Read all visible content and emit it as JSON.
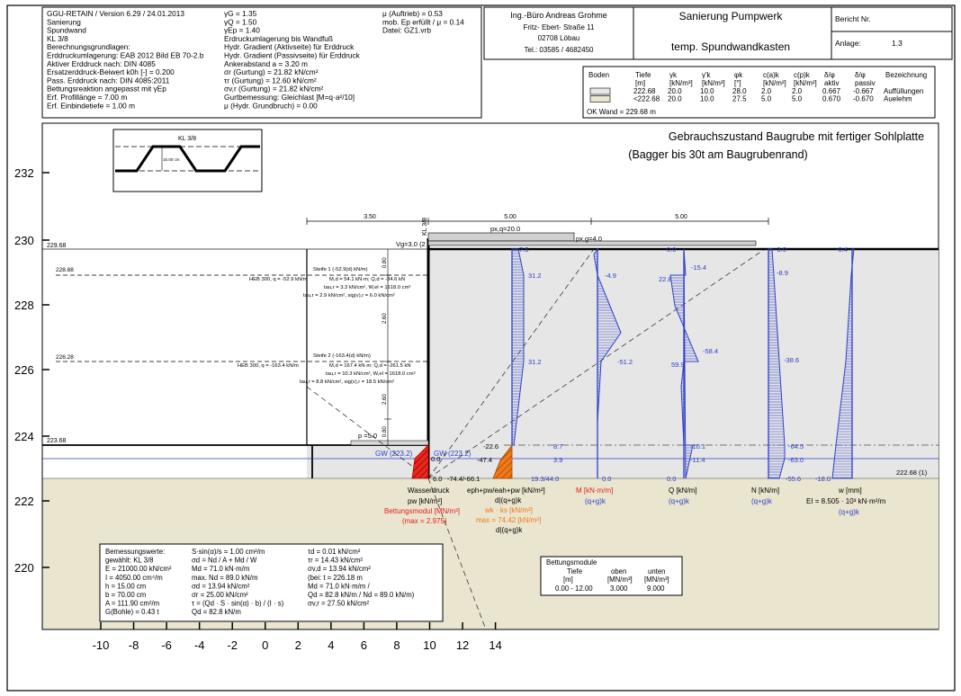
{
  "header": {
    "program_lines": [
      "GGU-RETAIN / Version 6.29 / 24.01.2013",
      "Sanierung",
      "Spundwand",
      "KL 3/8",
      "Berechnungsgrundlagen:",
      "Erddruckumlagerung: EAB 2012 Bild EB 70-2.b",
      "Aktiver Erddruck nach: DIN 4085",
      "Ersatzerddruck-Beiwert k0h [-] = 0.200",
      "Pass. Erddruck nach: DIN 4085:2011",
      "Bettungsreaktion angepasst mit γEp",
      "Erf. Profillänge = 7.00 m",
      "Erf. Einbindetiefe = 1.00 m"
    ],
    "factors_lines": [
      "γG = 1.35",
      "γQ = 1.50",
      "γEp = 1.40",
      "Erdruckumlagerung bis Wandfuß",
      "Hydr. Gradient (Aktivseite) für Erddruck",
      "Hydr. Gradient (Passivseite) für Erddruck",
      "Ankerabstand a = 3.20 m",
      "σr (Gurtung) = 21.82 kN/cm²",
      "τr (Gurtung) = 12.60 kN/cm²",
      "σv,r (Gurtung) = 21.82 kN/cm²",
      "Gurtbemessung: Gleichlast [M=q·a²/10]",
      "μ (Hydr. Grundbruch) = 0.00"
    ],
    "misc_lines": [
      "μ (Auftrieb) = 0.53",
      "mob. Ep erfüllt / μ = 0.14",
      "Datei: GZ1.vrb"
    ],
    "office": {
      "name": "Ing.-Büro Andreas Grohme",
      "street": "Fritz- Ebert- Straße 11",
      "city": "02708 Löbau",
      "phone": "Tel.: 03585 / 4682450"
    },
    "project": {
      "title": "Sanierung Pumpwerk",
      "subtitle": "temp. Spundwandkasten"
    },
    "report": {
      "bericht_label": "Bericht Nr.",
      "anlage_label": "Anlage:",
      "anlage_value": "1.3"
    }
  },
  "soil_table": {
    "headers": [
      "Boden",
      "Tiefe",
      "γk",
      "γ'k",
      "φk",
      "c(a)k",
      "c(p)k",
      "δ/φ",
      "δ/φ",
      "Bezeichnung"
    ],
    "units": [
      "",
      "[m]",
      "[kN/m³]",
      "[kN/m³]",
      "[°]",
      "[kN/m²]",
      "[kN/m²]",
      "aktiv",
      "passiv",
      ""
    ],
    "rows": [
      {
        "color": "#e6e6e6",
        "cells": [
          "222.68",
          "20.0",
          "10.0",
          "28.0",
          "2.0",
          "2.0",
          "0.667",
          "-0.667",
          "Auffüllungen"
        ]
      },
      {
        "color": "#eae5cf",
        "cells": [
          "<222.68",
          "20.0",
          "10.0",
          "27.5",
          "5.0",
          "5.0",
          "0.670",
          "-0.670",
          "Auelehm"
        ]
      }
    ],
    "ok_wand": "OK Wand = 229.68 m"
  },
  "drawing": {
    "title_line1": "Gebrauchszustand Baugrube mit fertiger Sohlplatte",
    "title_line2": "(Bagger bis 30t am Baugrubenrand)",
    "profile_label": "KL 3/8",
    "profile_height_label": "15.00 cm",
    "dims": {
      "left": "3.50",
      "right1": "5.00",
      "right2": "5.00"
    },
    "wall_tag": "KL 3/8",
    "elev_labels": {
      "top": "229.68",
      "strut1": "228.88",
      "strut2": "226.28",
      "bottom": "223.68",
      "right": "222.68 (1)"
    },
    "section_dims": [
      "0.80",
      "2.60",
      "2.60",
      "0.80"
    ],
    "loads": {
      "pxq": "px,q=20.0",
      "pxg": "px,g=4.0",
      "vg": "Vg=3.0 (2",
      "p": "p =5.0"
    },
    "strut1": {
      "title": "Steife 1 (-52.9(d) kN/m)",
      "left": "HEB 300, q = -52.9 kN/m",
      "l1": "M,d = 54.1 kN·m; Q,d = -84.6 kN",
      "l2": "tau,r = 3.3 kN/cm², W,el = 1618.0 cm³",
      "l3": "tau,r = 2.9 kN/cm², sig(v),r = 6.0 kN/cm²"
    },
    "strut2": {
      "title": "Steife 2 (-163.4(d) kN/m)",
      "left": "HEB 300, q = -163.4 kN/m",
      "l1": "M,d = 167.4 kN·m; Q,d = -261.5 kN",
      "l2": "tau,r = 10.3 kN/cm², W,el = 1618.0 cm³",
      "l3": "tau,r = 8.8 kN/cm², sig(v),r = 18.5 kN/cm²"
    },
    "gw_labels": [
      "GW (223.2)",
      "GW (223.2)"
    ],
    "values": {
      "wd": "0.0",
      "wd2": "6.0",
      "epa": "-74.4/-66.1",
      "ep1": "-47.4",
      "ep2": "-22.6",
      "eph_top": "7.5",
      "eph1": "31.2",
      "eph2": "31.2",
      "eph3": "8.7",
      "eph4": "3.9",
      "eph5": "19.3/44.0",
      "m1": "-4.9",
      "m2": "-51.2",
      "m3": "0.0",
      "q0": "0.0",
      "q1": "-15.4",
      "q2": "22.8",
      "q3": "59.9",
      "q4": "-58.4",
      "q5": "-10.1",
      "q6": "-11.4",
      "q7": "0.0",
      "n1": "-3.0",
      "n2": "-8.9",
      "n3": "-38.6",
      "n4": "-64.5",
      "n5": "-63.0",
      "n6": "-55.6",
      "w1": "-0.4",
      "w2": "-18.0"
    },
    "captions": {
      "wasser1": "Wasserdruck",
      "wasser2": "pw [kN/m²]",
      "bettung1": "Bettungsmodul [MN/m³]",
      "bettung2": "(max = 2.975)",
      "eph1": "eph+pw/eah+pw [kN/m²]",
      "eph2": "d|(q+g)k",
      "wk1": "wk · ks [kN/m²]",
      "wk2": "max = 74.42 [kN/m²]",
      "wk3": "d|(q+g)k",
      "m1": "M [kN·m/m]",
      "m2": "(q+g)k",
      "q1": "Q [kN/m]",
      "q2": "(q+g)k",
      "n1": "N [kN/m]",
      "n2": "(q+g)k",
      "w1": "w [mm]",
      "w2": "EI = 8.505 · 10³ kN·m²/m",
      "w3": "(q+g)k"
    },
    "x_ticks": [
      "-10",
      "-8",
      "-6",
      "-4",
      "-2",
      "0",
      "2",
      "4",
      "6",
      "8",
      "10",
      "12",
      "14"
    ],
    "y_ticks": [
      "232",
      "230",
      "228",
      "226",
      "224",
      "222",
      "220"
    ]
  },
  "design_box": {
    "col1": [
      "Bemessungswerte:",
      "gewählt: KL 3/8",
      "E = 21000.00 kN/cm²",
      "I = 4050.00 cm⁴/m",
      "h = 15.00 cm",
      "b = 70.00 cm",
      "A = 111.90 cm²/m",
      "G(Bohle) = 0.43 t"
    ],
    "col2": [
      "S·sin(α)/s = 1.00 cm²/m",
      "σd = Nd / A + Md / W",
      "Md = 71.0 kN·m/m",
      "max. Nd = 89.0 kN/m",
      "σd = 13.94 kN/cm²",
      "σr = 25.00 kN/cm²",
      "τ = (Qd · S · sin(α) · b) / (I · s)",
      "Qd = 82.8 kN/m"
    ],
    "col3": [
      "τd = 0.01 kN/cm²",
      "τr = 14.43 kN/cm²",
      "σv,d = 13.94 kN/cm²",
      "(bei: t = 226.18 m",
      "Md = 71.0 kN·m/m /",
      "Qd = 82.8 kN/m / Nd = 89.0 kN/m)",
      "σv,r = 27.50 kN/cm²"
    ]
  },
  "bettung_box": {
    "title": "Bettungsmodule",
    "headers": [
      "Tiefe",
      "oben",
      "unten"
    ],
    "units": [
      "[m]",
      "[MN/m³]",
      "[MN/m³]"
    ],
    "row": [
      "0.00 - 12.00",
      "3.000",
      "9.000"
    ]
  }
}
